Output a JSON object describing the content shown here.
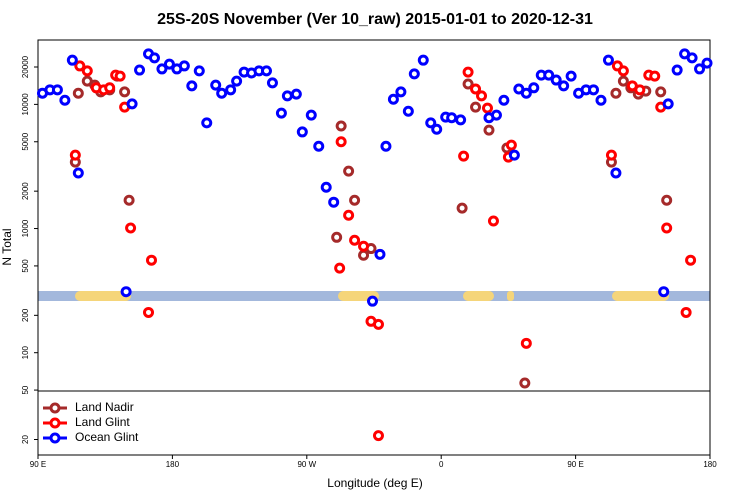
{
  "chart_data": {
    "type": "scatter",
    "title": "25S-20S November (Ver 10_raw)   2015-01-01 to 2020-12-31",
    "x_label": "Longitude (deg E)",
    "y_label": "N Total",
    "yscale": "log",
    "legend": "bottom-left",
    "xlim": [
      90,
      540
    ],
    "ylim": [
      15,
      33000
    ],
    "xticks": [
      {
        "value": 90,
        "label": "90 E"
      },
      180,
      {
        "value": 270,
        "label": "90 W"
      },
      {
        "value": 360,
        "label": "0"
      },
      {
        "value": 450,
        "label": "90 E"
      },
      {
        "value": 540,
        "label": "180"
      }
    ],
    "yticks": [
      20,
      50,
      100,
      200,
      500,
      1000,
      2000,
      5000,
      10000,
      20000
    ],
    "series": [
      {
        "name": "Land Nadir",
        "color": "#a52a2a",
        "x": [
          117,
          115,
          123,
          128,
          132,
          138,
          143,
          148,
          151,
          293,
          298,
          302,
          290,
          308,
          313,
          374,
          378,
          383,
          392,
          404,
          416,
          474,
          477,
          482,
          487,
          492,
          497,
          507,
          511
        ],
        "values": [
          12300,
          3430,
          15400,
          14300,
          12600,
          13100,
          16900,
          12600,
          1690,
          6700,
          2900,
          1690,
          850,
          610,
          690,
          1460,
          14600,
          9500,
          6200,
          4450,
          57,
          3430,
          12300,
          15400,
          13600,
          12100,
          12800,
          12600,
          1690
        ]
      },
      {
        "name": "Land Glint",
        "color": "#ff0000",
        "x": [
          118,
          123,
          129,
          134,
          138,
          142,
          145,
          148,
          115,
          152,
          164,
          166,
          292,
          293,
          298,
          302,
          308,
          313,
          318,
          318,
          375,
          378,
          383,
          387,
          391,
          395,
          405,
          407,
          417,
          474,
          478,
          482,
          488,
          493,
          499,
          503,
          507,
          511,
          524,
          527
        ],
        "values": [
          20400,
          18600,
          13600,
          13100,
          13600,
          17200,
          16900,
          9500,
          3900,
          1010,
          211,
          556,
          480,
          5000,
          1280,
          805,
          720,
          179,
          169,
          21.5,
          3830,
          18200,
          13300,
          11700,
          9330,
          1150,
          3760,
          4700,
          119,
          3900,
          20400,
          18600,
          14100,
          13100,
          17200,
          16900,
          9500,
          1010,
          211,
          556
        ]
      },
      {
        "name": "Ocean Glint",
        "color": "#0000ff",
        "x": [
          93,
          98,
          103,
          108,
          113,
          117,
          149,
          153,
          158,
          164,
          168,
          173,
          178,
          183,
          188,
          193,
          198,
          203,
          209,
          213,
          219,
          223,
          228,
          233,
          238,
          243,
          247,
          253,
          257,
          263,
          267,
          273,
          278,
          283,
          288,
          314,
          319,
          323,
          328,
          333,
          338,
          342,
          348,
          353,
          357,
          363,
          367,
          373,
          392,
          397,
          402,
          409,
          412,
          417,
          422,
          427,
          432,
          437,
          442,
          447,
          452,
          457,
          462,
          467,
          472,
          477,
          509,
          512,
          518,
          523,
          528,
          533,
          538
        ],
        "values": [
          12300,
          13100,
          13100,
          10800,
          22700,
          2800,
          310,
          10100,
          18900,
          25500,
          23700,
          19300,
          21100,
          19300,
          20400,
          14100,
          18600,
          7100,
          14300,
          12300,
          13100,
          15400,
          18200,
          17900,
          18600,
          18600,
          14900,
          8500,
          11700,
          12100,
          6000,
          8200,
          4600,
          2150,
          1630,
          260,
          620,
          4600,
          11000,
          12600,
          8800,
          17600,
          22700,
          7100,
          6300,
          7900,
          7800,
          7500,
          7800,
          8200,
          10800,
          3900,
          13300,
          12300,
          13600,
          17200,
          17200,
          15700,
          14100,
          16900,
          12300,
          13100,
          13100,
          10800,
          22700,
          2800,
          310,
          10100,
          18900,
          25500,
          23700,
          19300,
          21500
        ]
      }
    ]
  }
}
